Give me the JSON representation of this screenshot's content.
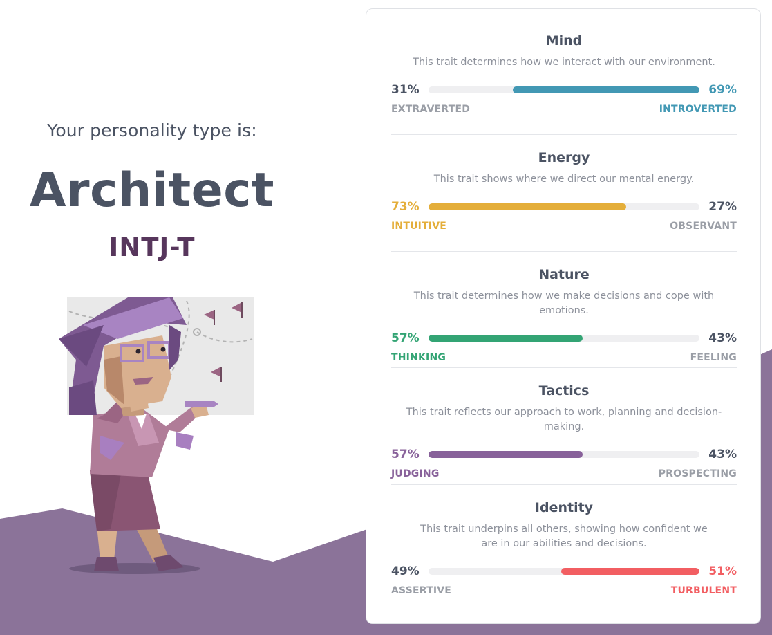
{
  "left": {
    "intro": "Your personality type is:",
    "type_name": "Architect",
    "type_code": "INTJ-T"
  },
  "colors": {
    "text": "#4b5363",
    "code": "#57365c",
    "mountain": "#8b7399",
    "mind": "#4298b4",
    "energy": "#e4ae3a",
    "nature": "#33a474",
    "tactics": "#88619a",
    "identity": "#f25e62",
    "muted": "#9a9ea6"
  },
  "traits": [
    {
      "title": "Mind",
      "desc": "This trait determines how we interact with our environment.",
      "left_pct": "31%",
      "right_pct": "69%",
      "left_label": "EXTRAVERTED",
      "right_label": "INTROVERTED",
      "dominant": "right",
      "value": 0.69,
      "color": "#4298b4"
    },
    {
      "title": "Energy",
      "desc": "This trait shows where we direct our mental energy.",
      "left_pct": "73%",
      "right_pct": "27%",
      "left_label": "INTUITIVE",
      "right_label": "OBSERVANT",
      "dominant": "left",
      "value": 0.73,
      "color": "#e4ae3a"
    },
    {
      "title": "Nature",
      "desc": "This trait determines how we make decisions and cope with emotions.",
      "left_pct": "57%",
      "right_pct": "43%",
      "left_label": "THINKING",
      "right_label": "FEELING",
      "dominant": "left",
      "value": 0.57,
      "color": "#33a474"
    },
    {
      "title": "Tactics",
      "desc": "This trait reflects our approach to work, planning and decision-making.",
      "left_pct": "57%",
      "right_pct": "43%",
      "left_label": "JUDGING",
      "right_label": "PROSPECTING",
      "dominant": "left",
      "value": 0.57,
      "color": "#88619a"
    },
    {
      "title": "Identity",
      "desc": "This trait underpins all others, showing how confident we are in our abilities and decisions.",
      "left_pct": "49%",
      "right_pct": "51%",
      "left_label": "ASSERTIVE",
      "right_label": "TURBULENT",
      "dominant": "right",
      "value": 0.51,
      "color": "#f25e62"
    }
  ]
}
